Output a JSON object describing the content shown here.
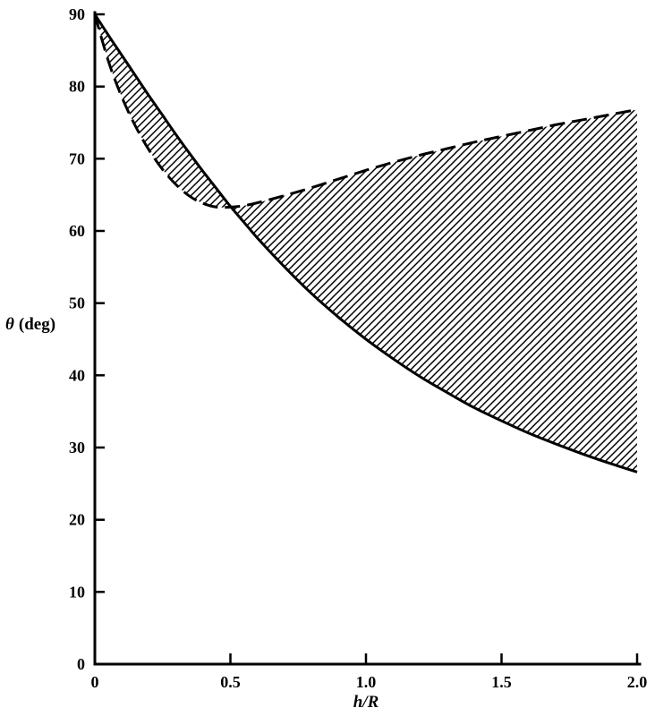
{
  "chart_data": {
    "type": "line",
    "title": "",
    "xlabel": "h/R",
    "ylabel_symbol": "θ",
    "ylabel_unit": "(deg)",
    "xlim": [
      0,
      2
    ],
    "ylim": [
      0,
      90
    ],
    "x_ticks": [
      0,
      0.5,
      1.0,
      1.5,
      2.0
    ],
    "x_tick_labels": [
      "0",
      "0.5",
      "1.0",
      "1.5",
      "2.0"
    ],
    "y_ticks": [
      0,
      10,
      20,
      30,
      40,
      50,
      60,
      70,
      80,
      90
    ],
    "y_tick_labels": [
      "0",
      "10",
      "20",
      "30",
      "40",
      "50",
      "60",
      "70",
      "80",
      "90"
    ],
    "grid": false,
    "legend": null,
    "line_color": "#000000",
    "background": "#ffffff",
    "series": [
      {
        "name": "lower-solid-boundary",
        "style": "solid",
        "x": [
          0,
          0.05,
          0.1,
          0.15,
          0.2,
          0.25,
          0.3,
          0.35,
          0.4,
          0.45,
          0.5,
          0.55,
          0.6,
          0.7,
          0.8,
          0.9,
          1.0,
          1.1,
          1.2,
          1.3,
          1.4,
          1.5,
          1.6,
          1.7,
          1.8,
          1.9,
          2.0
        ],
        "y": [
          90,
          87.1,
          84.3,
          81.5,
          78.7,
          76.0,
          73.3,
          70.7,
          68.2,
          65.8,
          63.4,
          61.2,
          59.0,
          55.0,
          51.3,
          48.0,
          45.0,
          42.3,
          39.8,
          37.6,
          35.5,
          33.7,
          32.0,
          30.5,
          29.1,
          27.8,
          26.6
        ]
      },
      {
        "name": "upper-dashed-boundary",
        "style": "dashed",
        "x": [
          0,
          0.05,
          0.1,
          0.15,
          0.2,
          0.25,
          0.3,
          0.35,
          0.4,
          0.45,
          0.5,
          0.55,
          0.6,
          0.7,
          0.8,
          0.9,
          1.0,
          1.1,
          1.2,
          1.3,
          1.4,
          1.5,
          1.6,
          1.7,
          1.8,
          1.9,
          2.0
        ],
        "y": [
          90,
          83.5,
          78.5,
          74.5,
          71.2,
          68.5,
          66.4,
          64.8,
          63.8,
          63.3,
          63.3,
          63.5,
          63.9,
          64.9,
          66.0,
          67.2,
          68.4,
          69.5,
          70.5,
          71.4,
          72.3,
          73.1,
          73.9,
          74.7,
          75.4,
          76.1,
          76.8
        ]
      }
    ],
    "fill_between": {
      "series": [
        "lower-solid-boundary",
        "upper-dashed-boundary"
      ],
      "fill": "diagonal-hatch",
      "crossing_point_x": 0.5
    }
  }
}
